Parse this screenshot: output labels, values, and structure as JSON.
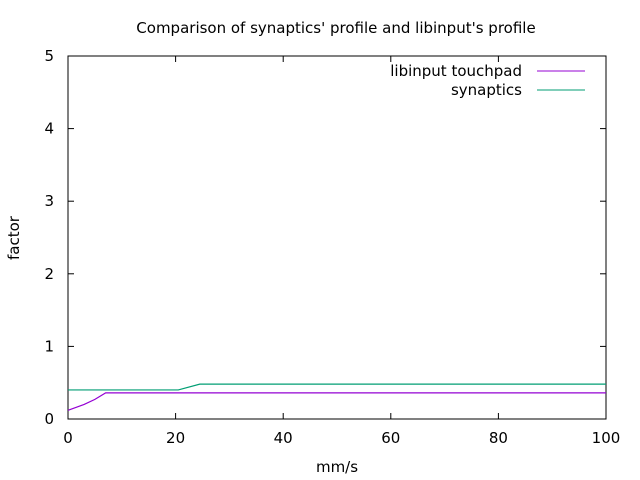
{
  "chart_data": {
    "type": "line",
    "title": "Comparison of synaptics' profile and libinput's profile",
    "xlabel": "mm/s",
    "ylabel": "factor",
    "xlim": [
      0,
      100
    ],
    "ylim": [
      0,
      5
    ],
    "xticks": [
      "0",
      "20",
      "40",
      "60",
      "80",
      "100"
    ],
    "yticks": [
      "0",
      "1",
      "2",
      "3",
      "4",
      "5"
    ],
    "grid": false,
    "legend_position": "top-right",
    "series": [
      {
        "name": "libinput touchpad",
        "color": "#9400d3",
        "points": [
          [
            0,
            0.12
          ],
          [
            3,
            0.2
          ],
          [
            5,
            0.27
          ],
          [
            7,
            0.36
          ],
          [
            100,
            0.36
          ]
        ]
      },
      {
        "name": "synaptics",
        "color": "#009e73",
        "points": [
          [
            0,
            0.4
          ],
          [
            20.5,
            0.4
          ],
          [
            24.5,
            0.48
          ],
          [
            100,
            0.48
          ]
        ]
      }
    ]
  }
}
